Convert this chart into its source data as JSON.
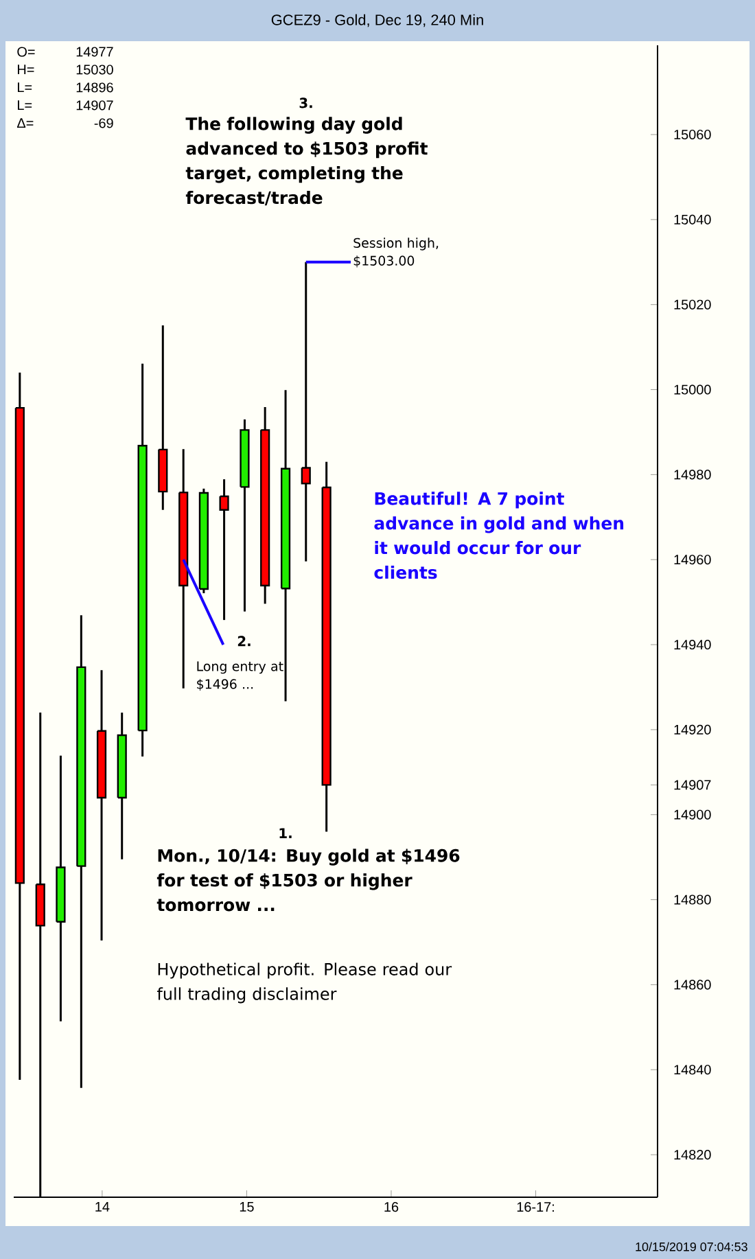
{
  "chart_data": {
    "type": "candlestick",
    "title": "GCEZ9 - Gold, Dec 19, 240 Min",
    "x": [
      13.43,
      13.572,
      13.713,
      13.855,
      13.996,
      14.137,
      14.279,
      14.42,
      14.562,
      14.703,
      14.844,
      14.986,
      15.127,
      15.269,
      15.41,
      15.552
    ],
    "ohlc": [
      [
        14995.7,
        15004.0,
        14837.6,
        14883.9
      ],
      [
        14883.6,
        14924.0,
        14810,
        14873.9
      ],
      [
        14874.8,
        14913.9,
        14851.4,
        14887.6
      ],
      [
        14887.9,
        14946.9,
        14835.7,
        14934.7
      ],
      [
        14919.7,
        14934.0,
        14870.4,
        14904.0
      ],
      [
        14904.0,
        14924.0,
        14889.5,
        14918.7
      ],
      [
        14919.8,
        15006.1,
        14913.7,
        14986.8
      ],
      [
        14985.9,
        15015.1,
        14971.7,
        14976.0
      ],
      [
        14975.8,
        14986.0,
        14929.7,
        14953.9
      ],
      [
        14953.1,
        14976.7,
        14952.1,
        14975.7
      ],
      [
        14974.9,
        14978.9,
        14945.8,
        14971.7
      ],
      [
        14977.1,
        14993.0,
        14947.8,
        14990.5
      ],
      [
        14990.5,
        14995.9,
        14949.6,
        14953.9
      ],
      [
        14953.2,
        14999.9,
        14926.7,
        14981.4
      ],
      [
        14981.6,
        15030,
        14959.6,
        14977.9
      ],
      [
        14977,
        14983,
        14896,
        14907
      ]
    ],
    "xlim": [
      13.388,
      17.843
    ],
    "xticks": [
      14,
      15,
      16,
      {
        "value": 17,
        "label": "16-17:"
      }
    ],
    "ylim": [
      14810,
      15081
    ],
    "yticks": [
      14820,
      14840,
      14860,
      14880,
      14900,
      14907,
      14920,
      14940,
      14960,
      14980,
      15000,
      15020,
      15040,
      15060
    ],
    "annotations": [
      "O=",
      "14977",
      "H=",
      "15030",
      "L=",
      "14896",
      "L=",
      "14907",
      "Δ=",
      "-69",
      "3.",
      "The following day gold advanced to $1503 profit target, completing the forecast/trade",
      {
        "text": "Session high, $1503.00",
        "x": 15.41,
        "y": 15030
      },
      "2.",
      {
        "text": "Long entry at $1496 ...",
        "x": 14.562,
        "y": 14960
      },
      "Beautiful!  A 7 point advance in gold and when it would occur for our clients",
      "1.",
      "Mon., 10/14: Buy gold at $1496 for test of $1503 or higher tomorrow ...",
      "Hypothetical profit.  Please read our full trading disclaimer",
      "10/15/2019 07:04:53"
    ]
  }
}
